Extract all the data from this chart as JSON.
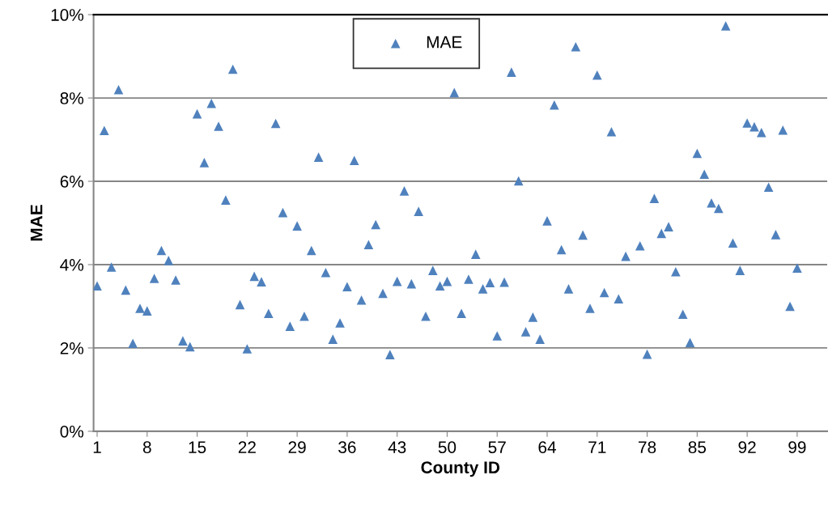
{
  "chart_data": {
    "type": "scatter",
    "xlabel": "County ID",
    "ylabel": "MAE",
    "x": [
      1,
      2,
      3,
      4,
      5,
      6,
      7,
      8,
      9,
      10,
      11,
      12,
      13,
      14,
      15,
      16,
      17,
      18,
      19,
      20,
      21,
      22,
      23,
      24,
      25,
      26,
      27,
      28,
      29,
      30,
      31,
      32,
      33,
      34,
      35,
      36,
      37,
      38,
      39,
      40,
      41,
      42,
      43,
      44,
      45,
      46,
      47,
      48,
      49,
      50,
      51,
      52,
      53,
      54,
      55,
      56,
      57,
      58,
      59,
      60,
      61,
      62,
      63,
      64,
      65,
      66,
      67,
      68,
      69,
      70,
      71,
      72,
      73,
      74,
      75,
      76,
      77,
      78,
      79,
      80,
      81,
      82,
      83,
      84,
      85,
      86,
      87,
      88,
      89,
      90,
      91,
      92,
      93,
      94,
      95,
      96,
      97,
      98,
      99
    ],
    "series": [
      {
        "name": "MAE",
        "color": "#4f81bd",
        "values": [
          3.49,
          7.22,
          3.94,
          8.2,
          3.39,
          2.11,
          2.95,
          2.89,
          3.67,
          4.34,
          4.1,
          3.63,
          2.17,
          2.03,
          7.62,
          6.45,
          7.87,
          7.32,
          5.55,
          8.69,
          3.04,
          1.98,
          3.72,
          3.59,
          2.83,
          7.39,
          5.25,
          2.52,
          4.93,
          2.76,
          4.34,
          6.58,
          3.81,
          2.21,
          2.6,
          3.47,
          6.5,
          3.15,
          4.48,
          4.96,
          3.31,
          1.84,
          3.6,
          5.77,
          3.54,
          5.28,
          2.76,
          3.86,
          3.49,
          3.6,
          8.13,
          2.83,
          3.65,
          4.25,
          3.42,
          3.57,
          2.29,
          3.58,
          8.62,
          6.01,
          2.39,
          2.74,
          2.21,
          5.05,
          7.83,
          4.36,
          3.42,
          9.23,
          4.71,
          2.95,
          8.55,
          3.33,
          7.19,
          3.18,
          4.2,
          null,
          4.45,
          1.85,
          5.59,
          4.75,
          4.91,
          3.83,
          2.81,
          2.13,
          6.67,
          6.17,
          5.48,
          5.35,
          9.73,
          4.52,
          3.86,
          7.4,
          7.31,
          7.17,
          5.86,
          4.72,
          7.23,
          3.0,
          3.92
        ]
      }
    ],
    "xlim": [
      0.5,
      103.2
    ],
    "xticks": [
      1,
      8,
      15,
      22,
      29,
      36,
      43,
      50,
      57,
      64,
      71,
      78,
      85,
      92,
      99
    ],
    "ylim": [
      0,
      10
    ],
    "yticks": [
      {
        "value": 0,
        "label": "0%"
      },
      {
        "value": 2,
        "label": "2%"
      },
      {
        "value": 4,
        "label": "4%"
      },
      {
        "value": 6,
        "label": "6%"
      },
      {
        "value": 8,
        "label": "8%"
      },
      {
        "value": 10,
        "label": "10%"
      }
    ],
    "grid": "y",
    "legend": "top",
    "marker": "triangle"
  }
}
